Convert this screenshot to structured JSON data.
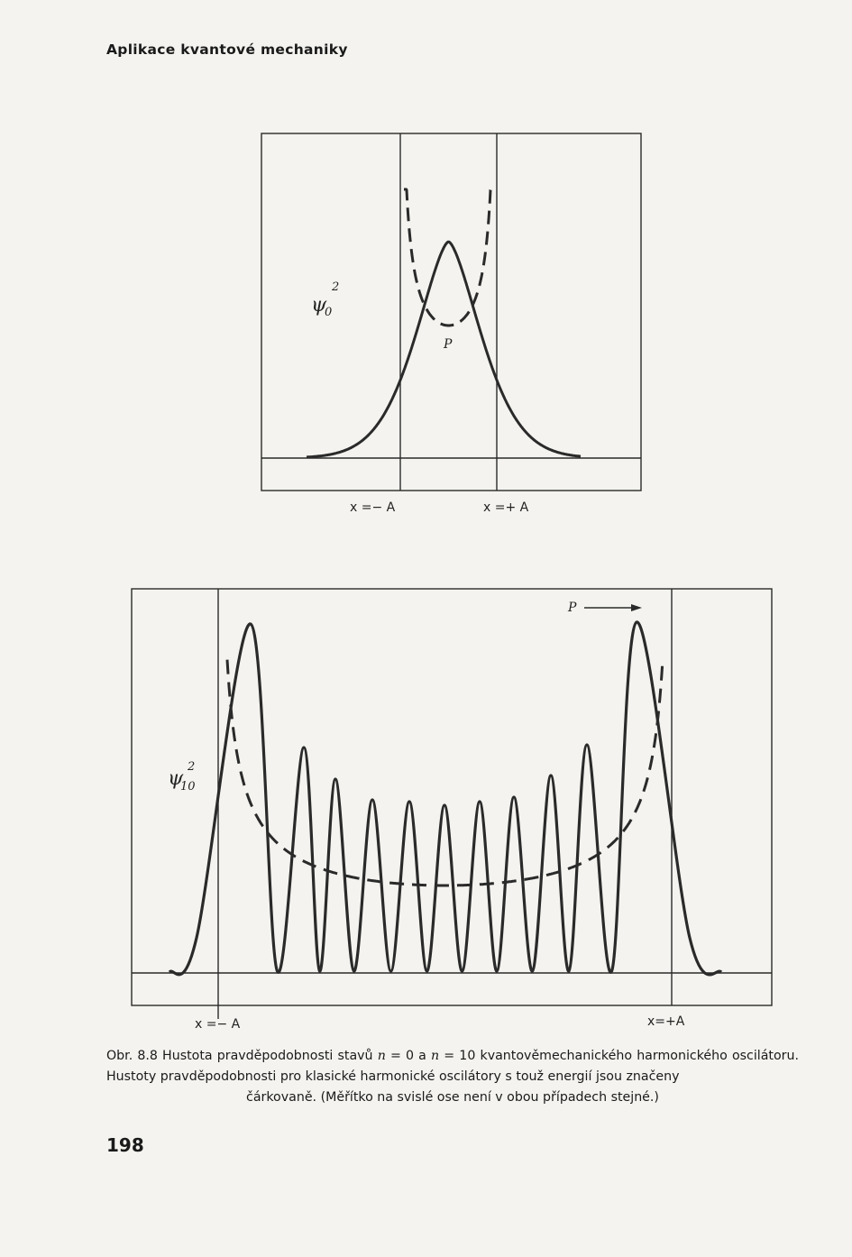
{
  "running_head": "Aplikace kvantové mechaniky",
  "figure_top": {
    "ylabel_symbol": "ψ",
    "ylabel_sub": "0",
    "ylabel_sup": "2",
    "classical_label": "P",
    "xlabel_left": "x =− A",
    "xlabel_right": "x =+ A"
  },
  "figure_bottom": {
    "ylabel_symbol": "ψ",
    "ylabel_sub": "10",
    "ylabel_sup": "2",
    "classical_label": "P",
    "xlabel_left": "x =− A",
    "xlabel_right": "x=+A"
  },
  "caption": {
    "prefix": "Obr. 8.8 Hustota pravděpodobnosti stavů",
    "n_symbol": "n",
    "eq1": "= 0 a",
    "eq2": "= 10 kvantověmechanického harmonického oscilátoru. Hustoty pravděpodobnosti pro klasické harmonické oscilátory s touž energií jsou značeny",
    "last_line": "čárkovaně. (Měřítko na svislé ose není v obou případech stejné.)"
  },
  "page_number": "198",
  "colors": {
    "ink": "#2a2a2a",
    "paper": "#f4f3ef"
  }
}
